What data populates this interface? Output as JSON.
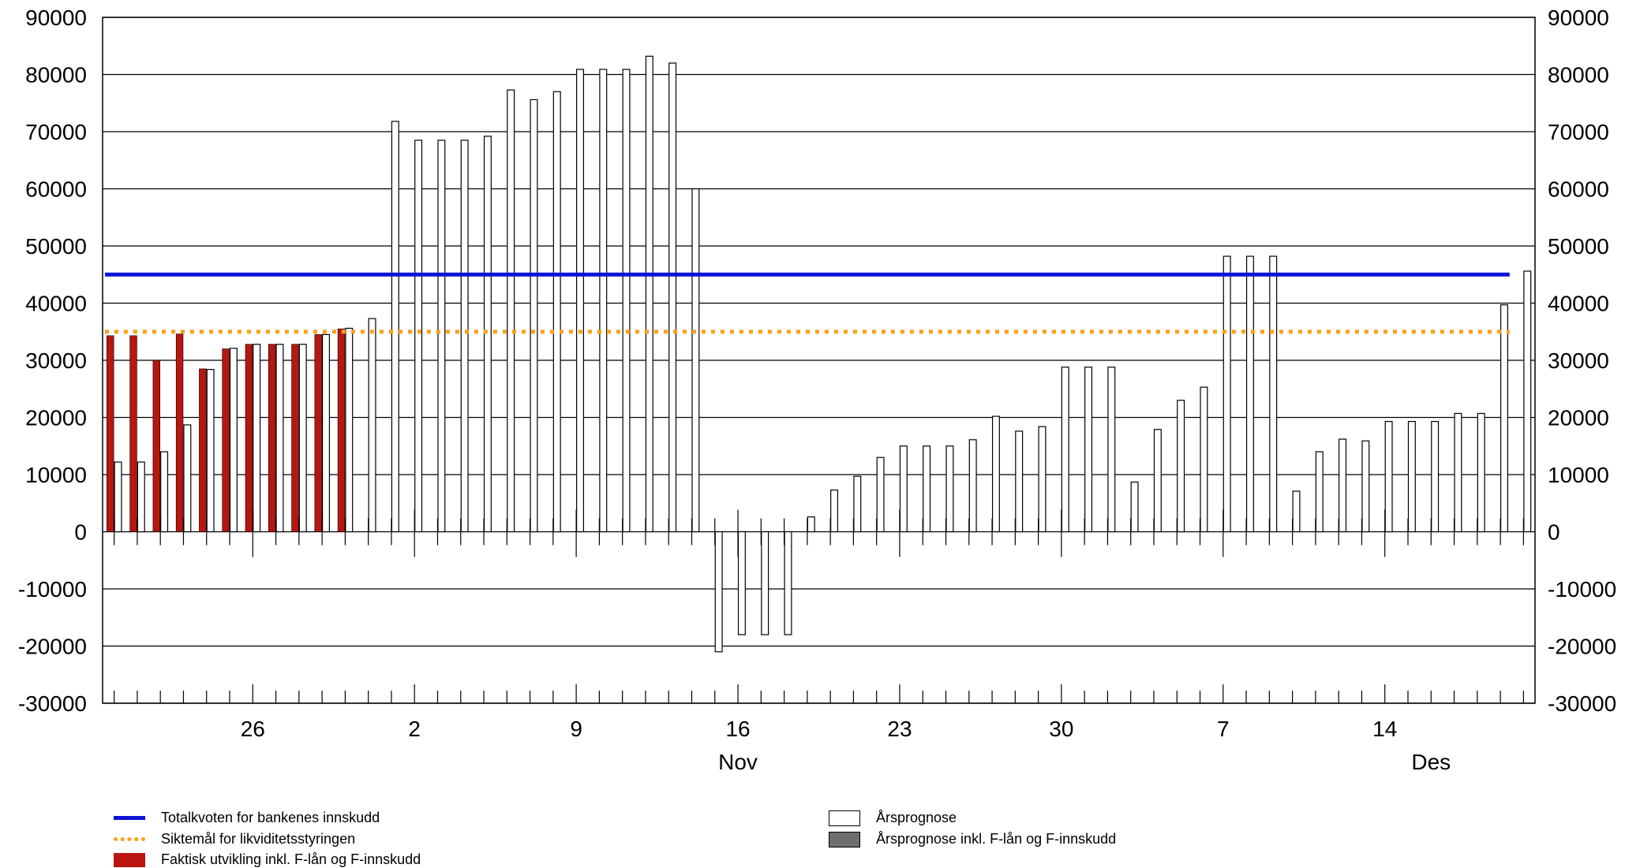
{
  "chart_data": {
    "type": "bar",
    "ylim": [
      -30000,
      90000
    ],
    "y_ticks": [
      90000,
      80000,
      70000,
      60000,
      50000,
      40000,
      30000,
      20000,
      10000,
      0,
      -10000,
      -20000,
      -30000
    ],
    "y_tick_labels": [
      "90000",
      "80000",
      "70000",
      "60000",
      "50000",
      "40000",
      "30000",
      "20000",
      "10000",
      "0",
      "-10000",
      "-20000",
      "-30000"
    ],
    "grid": true,
    "x_day_labels": [
      {
        "day": 6,
        "label": "26"
      },
      {
        "day": 13,
        "label": "2"
      },
      {
        "day": 20,
        "label": "9"
      },
      {
        "day": 27,
        "label": "16"
      },
      {
        "day": 34,
        "label": "23"
      },
      {
        "day": 41,
        "label": "30"
      },
      {
        "day": 48,
        "label": "7"
      },
      {
        "day": 55,
        "label": "14"
      }
    ],
    "x_month_labels": [
      {
        "day": 27,
        "label": "Nov"
      },
      {
        "day": 57,
        "label": "Des"
      }
    ],
    "series": [
      {
        "name": "Faktisk utvikling inkl. F-lån og F-innskudd",
        "color": "#b8160f",
        "days": [
          0,
          1,
          2,
          3,
          4,
          5,
          6,
          7,
          8,
          9,
          10
        ],
        "values": [
          34300,
          34300,
          30000,
          34600,
          28500,
          32000,
          32800,
          32800,
          32800,
          34500,
          35500
        ]
      },
      {
        "name": "Årsprognose",
        "color": "#ffffff",
        "days": [
          0,
          1,
          2,
          3,
          4,
          5,
          6,
          7,
          8,
          9,
          10,
          11,
          12,
          13,
          14,
          15,
          16,
          17,
          18,
          19,
          20,
          21,
          22,
          23,
          24,
          25,
          26,
          27,
          28,
          29,
          30,
          31,
          32,
          33,
          34,
          35,
          36,
          37,
          38,
          39,
          40,
          41,
          42,
          43,
          44,
          45,
          46,
          47,
          48,
          49,
          50,
          51,
          52,
          53,
          54,
          55,
          56,
          57,
          58,
          59,
          60,
          61
        ],
        "values": [
          12200,
          12200,
          14000,
          18700,
          28400,
          32100,
          32800,
          32800,
          32800,
          34500,
          35600,
          37300,
          71800,
          68500,
          68500,
          68500,
          69200,
          77300,
          75600,
          77000,
          80900,
          80900,
          80900,
          83200,
          82000,
          60000,
          -21000,
          -18000,
          -18000,
          -18000,
          2600,
          7300,
          9700,
          13000,
          15000,
          15000,
          15000,
          16100,
          20200,
          17600,
          18400,
          28800,
          28800,
          28800,
          8700,
          17900,
          23000,
          25300,
          48200,
          48200,
          48200,
          7100,
          14000,
          16200,
          15900,
          19300,
          19300,
          19300,
          20700,
          20700,
          39700,
          45600
        ]
      },
      {
        "name": "Årsprognose inkl. F-lån og F-innskudd",
        "color": "#6e6e6e",
        "days": [],
        "values": []
      }
    ],
    "lines": [
      {
        "name": "Totalkvoten for bankenes innskudd",
        "value": 45000,
        "color": "#0a14d6",
        "style": "solid"
      },
      {
        "name": "Siktemål for likviditetsstyringen",
        "value": 35000,
        "color": "#ff9e1b",
        "style": "dotted"
      }
    ]
  },
  "legend": {
    "line_total": "Totalkvoten for bankenes innskudd",
    "line_target": "Siktemål for likviditetsstyringen",
    "bar_actual": "Faktisk utvikling inkl. F-lån og F-innskudd",
    "bar_forecast": "Årsprognose",
    "bar_forecast_incl": "Årsprognose inkl. F-lån og F-innskudd"
  }
}
